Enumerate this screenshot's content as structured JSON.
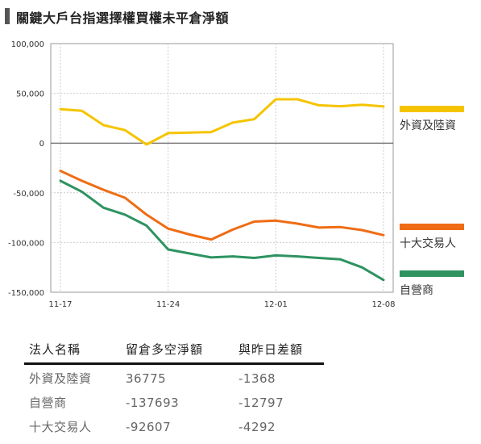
{
  "title": "關鍵大戶台指選擇權買權未平倉淨額",
  "colors": {
    "foreign": "#f5c400",
    "top10": "#ef6c14",
    "dealer": "#2e9361",
    "grid": "#cccccc",
    "axis": "#999999"
  },
  "chart_data": {
    "type": "line",
    "x": [
      "11-17",
      "11-18",
      "11-21",
      "11-22",
      "11-23",
      "11-24",
      "11-25",
      "11-28",
      "11-29",
      "11-30",
      "12-01",
      "12-02",
      "12-05",
      "12-06",
      "12-07",
      "12-08"
    ],
    "xticks": [
      "11-17",
      "11-24",
      "12-01",
      "12-08"
    ],
    "ylim": [
      -150000,
      100000
    ],
    "yticks": [
      "100,000",
      "50,000",
      "0",
      "-50,000",
      "-100,000",
      "-150,000"
    ],
    "yticks_values": [
      100000,
      50000,
      0,
      -50000,
      -100000,
      -150000
    ],
    "series": [
      {
        "name": "外資及陸資",
        "color_key": "foreign",
        "values": [
          34000,
          32500,
          18000,
          13000,
          -1500,
          10000,
          10500,
          11000,
          20500,
          24000,
          44000,
          44000,
          38000,
          37000,
          38500,
          36775
        ]
      },
      {
        "name": "十大交易人",
        "color_key": "top10",
        "values": [
          -28000,
          -38000,
          -47000,
          -55000,
          -72000,
          -86000,
          -92000,
          -97000,
          -87000,
          -79000,
          -78000,
          -81000,
          -85000,
          -84500,
          -87500,
          -92607
        ]
      },
      {
        "name": "自營商",
        "color_key": "dealer",
        "values": [
          -38000,
          -49000,
          -65000,
          -72000,
          -83000,
          -107000,
          -111000,
          -115000,
          -114000,
          -115500,
          -113000,
          -114000,
          -115500,
          -117000,
          -125000,
          -137693
        ]
      }
    ]
  },
  "legend": [
    {
      "label": "外資及陸資",
      "color_key": "foreign"
    },
    {
      "label": "十大交易人",
      "color_key": "top10"
    },
    {
      "label": "自營商",
      "color_key": "dealer"
    }
  ],
  "table": {
    "headers": [
      "法人名稱",
      "留倉多空淨額",
      "與昨日差額"
    ],
    "rows": [
      [
        "外資及陸資",
        "36775",
        "-1368"
      ],
      [
        "自營商",
        "-137693",
        "-12797"
      ],
      [
        "十大交易人",
        "-92607",
        "-4292"
      ]
    ]
  }
}
